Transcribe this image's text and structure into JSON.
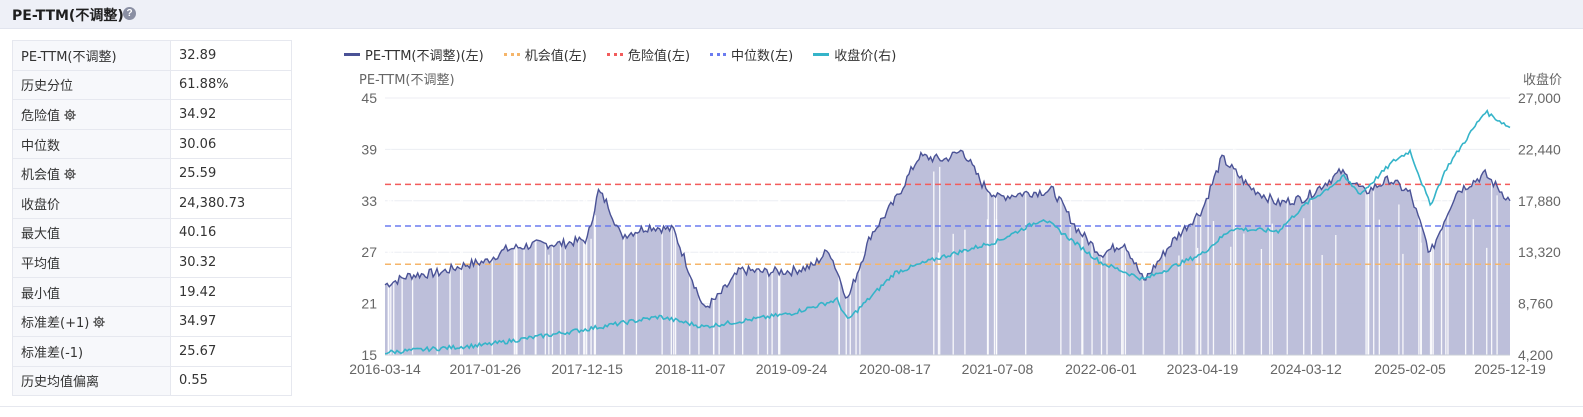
{
  "header": {
    "title": "PE-TTM(不调整)",
    "help_icon": "question-circle-icon"
  },
  "stats": [
    {
      "label": "PE-TTM(不调整)",
      "value": "32.89",
      "gear": false
    },
    {
      "label": "历史分位",
      "value": "61.88%",
      "gear": false
    },
    {
      "label": "危险值",
      "value": "34.92",
      "gear": true
    },
    {
      "label": "中位数",
      "value": "30.06",
      "gear": false
    },
    {
      "label": "机会值",
      "value": "25.59",
      "gear": true
    },
    {
      "label": "收盘价",
      "value": "24,380.73",
      "gear": false
    },
    {
      "label": "最大值",
      "value": "40.16",
      "gear": false
    },
    {
      "label": "平均值",
      "value": "30.32",
      "gear": false
    },
    {
      "label": "最小值",
      "value": "19.42",
      "gear": false
    },
    {
      "label": "标准差(+1)",
      "value": "34.97",
      "gear": true
    },
    {
      "label": "标准差(-1)",
      "value": "25.67",
      "gear": false
    },
    {
      "label": "历史均值偏离",
      "value": "0.55",
      "gear": false
    }
  ],
  "colors": {
    "pe": "#4a5296",
    "pe_fill": "#b9bcd8",
    "opportunity": "#f5b56a",
    "danger": "#f25c5c",
    "median": "#6b7cf0",
    "close": "#35b4c9"
  },
  "chart_data": {
    "type": "line",
    "legend": [
      "PE-TTM(不调整)(左)",
      "机会值(左)",
      "危险值(左)",
      "中位数(左)",
      "收盘价(右)"
    ],
    "ylabel_left": "PE-TTM(不调整)",
    "ylabel_right": "收盘价",
    "y_left_ticks": [
      "45",
      "39",
      "33",
      "27",
      "21",
      "15"
    ],
    "y_right_ticks": [
      "27,000",
      "22,440",
      "17,880",
      "13,320",
      "8,760",
      "4,200"
    ],
    "ylim_left": [
      15,
      45
    ],
    "ylim_right": [
      4200,
      27000
    ],
    "x_ticks": [
      "2016-03-14",
      "2017-01-26",
      "2017-12-15",
      "2018-11-07",
      "2019-09-24",
      "2020-08-17",
      "2021-07-08",
      "2022-06-01",
      "2023-04-19",
      "2024-03-12",
      "2025-02-05",
      "2025-12-19"
    ],
    "x_range": [
      "2016-03-14",
      "2025-12-19"
    ],
    "reference_lines": {
      "danger": 34.92,
      "median": 30.06,
      "opportunity": 25.59
    },
    "pe_series": [
      [
        "2016-03-14",
        23.2
      ],
      [
        "2016-06-01",
        24.3
      ],
      [
        "2016-09-01",
        24.6
      ],
      [
        "2016-12-01",
        25.6
      ],
      [
        "2017-01-26",
        25.9
      ],
      [
        "2017-04-01",
        27.3
      ],
      [
        "2017-07-01",
        27.9
      ],
      [
        "2017-10-01",
        28.0
      ],
      [
        "2017-12-15",
        28.5
      ],
      [
        "2018-01-20",
        34.1
      ],
      [
        "2018-02-20",
        32.5
      ],
      [
        "2018-04-01",
        28.9
      ],
      [
        "2018-07-01",
        30.0
      ],
      [
        "2018-09-15",
        29.6
      ],
      [
        "2018-11-07",
        24.5
      ],
      [
        "2018-12-20",
        20.4
      ],
      [
        "2019-02-01",
        21.7
      ],
      [
        "2019-04-15",
        24.9
      ],
      [
        "2019-07-01",
        24.7
      ],
      [
        "2019-09-24",
        24.8
      ],
      [
        "2019-12-01",
        25.4
      ],
      [
        "2020-01-20",
        27.3
      ],
      [
        "2020-03-20",
        21.5
      ],
      [
        "2020-06-01",
        29.0
      ],
      [
        "2020-08-17",
        33.0
      ],
      [
        "2020-11-01",
        38.2
      ],
      [
        "2021-01-20",
        37.8
      ],
      [
        "2021-03-20",
        38.9
      ],
      [
        "2021-05-20",
        35.0
      ],
      [
        "2021-07-08",
        33.4
      ],
      [
        "2021-10-01",
        33.9
      ],
      [
        "2022-01-01",
        34.2
      ],
      [
        "2022-03-15",
        29.8
      ],
      [
        "2022-06-01",
        26.8
      ],
      [
        "2022-08-15",
        28.1
      ],
      [
        "2022-10-15",
        23.6
      ],
      [
        "2023-01-15",
        28.3
      ],
      [
        "2023-04-19",
        32.0
      ],
      [
        "2023-06-20",
        38.0
      ],
      [
        "2023-09-15",
        34.6
      ],
      [
        "2023-12-15",
        32.7
      ],
      [
        "2024-03-12",
        33.4
      ],
      [
        "2024-07-01",
        36.4
      ],
      [
        "2024-09-15",
        34.0
      ],
      [
        "2024-12-01",
        35.5
      ],
      [
        "2025-02-05",
        33.9
      ],
      [
        "2025-04-10",
        26.8
      ],
      [
        "2025-07-01",
        34.0
      ],
      [
        "2025-10-01",
        36.1
      ],
      [
        "2025-12-19",
        33.0
      ]
    ],
    "close_series": [
      [
        "2016-03-14",
        4420
      ],
      [
        "2017-01-26",
        5100
      ],
      [
        "2017-12-15",
        6500
      ],
      [
        "2018-08-01",
        7600
      ],
      [
        "2018-12-20",
        6700
      ],
      [
        "2019-09-24",
        7900
      ],
      [
        "2020-02-15",
        9100
      ],
      [
        "2020-03-20",
        7300
      ],
      [
        "2020-08-17",
        11500
      ],
      [
        "2021-01-01",
        12800
      ],
      [
        "2021-07-08",
        14300
      ],
      [
        "2021-12-01",
        16300
      ],
      [
        "2022-06-01",
        12400
      ],
      [
        "2022-10-15",
        10900
      ],
      [
        "2023-04-19",
        13200
      ],
      [
        "2023-07-20",
        15400
      ],
      [
        "2023-12-15",
        15200
      ],
      [
        "2024-03-12",
        17600
      ],
      [
        "2024-07-10",
        20000
      ],
      [
        "2024-09-01",
        18500
      ],
      [
        "2024-12-15",
        21400
      ],
      [
        "2025-02-05",
        22300
      ],
      [
        "2025-04-10",
        17500
      ],
      [
        "2025-06-01",
        20800
      ],
      [
        "2025-10-01",
        25800
      ],
      [
        "2025-12-19",
        24380.73
      ]
    ]
  }
}
